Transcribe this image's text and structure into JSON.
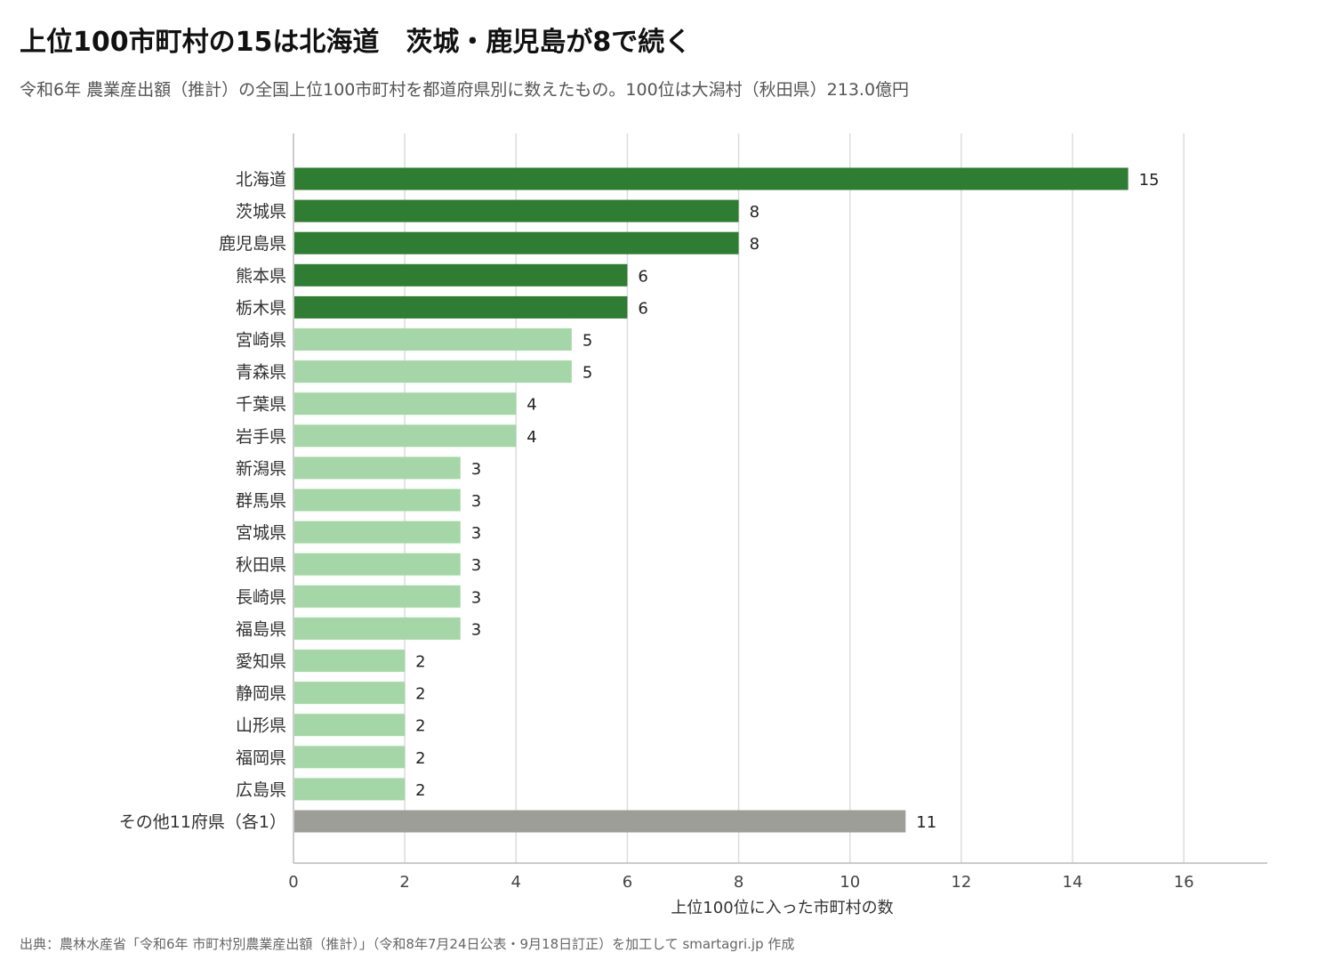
{
  "title": "上位100市町村の15は北海道　茨城・鹿児島が8で続く",
  "subtitle": "令和6年 農業産出額（推計）の全国上位100市町村を都道府県別に数えたもの。100位は大潟村（秋田県）213.0億円",
  "source": "出典：農林水産省「令和6年 市町村別農業産出額（推計）」（令和8年7月24日公表・9月18日訂正）を加工して smartagri.jp 作成",
  "colors": {
    "highlight": "#2e7d32",
    "normal": "#a5d6a7",
    "other": "#9e9e98"
  },
  "chart_data": {
    "type": "bar",
    "orientation": "horizontal",
    "categories": [
      "北海道",
      "茨城県",
      "鹿児島県",
      "熊本県",
      "栃木県",
      "宮崎県",
      "青森県",
      "千葉県",
      "岩手県",
      "新潟県",
      "群馬県",
      "宮城県",
      "秋田県",
      "長崎県",
      "福島県",
      "愛知県",
      "静岡県",
      "山形県",
      "福岡県",
      "広島県",
      "その他11府県（各1）"
    ],
    "values": [
      15,
      8,
      8,
      6,
      6,
      5,
      5,
      4,
      4,
      3,
      3,
      3,
      3,
      3,
      3,
      2,
      2,
      2,
      2,
      2,
      11
    ],
    "groups": [
      "highlight",
      "highlight",
      "highlight",
      "highlight",
      "highlight",
      "normal",
      "normal",
      "normal",
      "normal",
      "normal",
      "normal",
      "normal",
      "normal",
      "normal",
      "normal",
      "normal",
      "normal",
      "normal",
      "normal",
      "normal",
      "other"
    ],
    "title": "上位100市町村の15は北海道　茨城・鹿児島が8で続く",
    "xlabel": "上位100位に入った市町村の数",
    "ylabel": "",
    "xlim": [
      0,
      17.5
    ],
    "xticks": [
      0,
      2,
      4,
      6,
      8,
      10,
      12,
      14,
      16
    ],
    "grid": true
  }
}
